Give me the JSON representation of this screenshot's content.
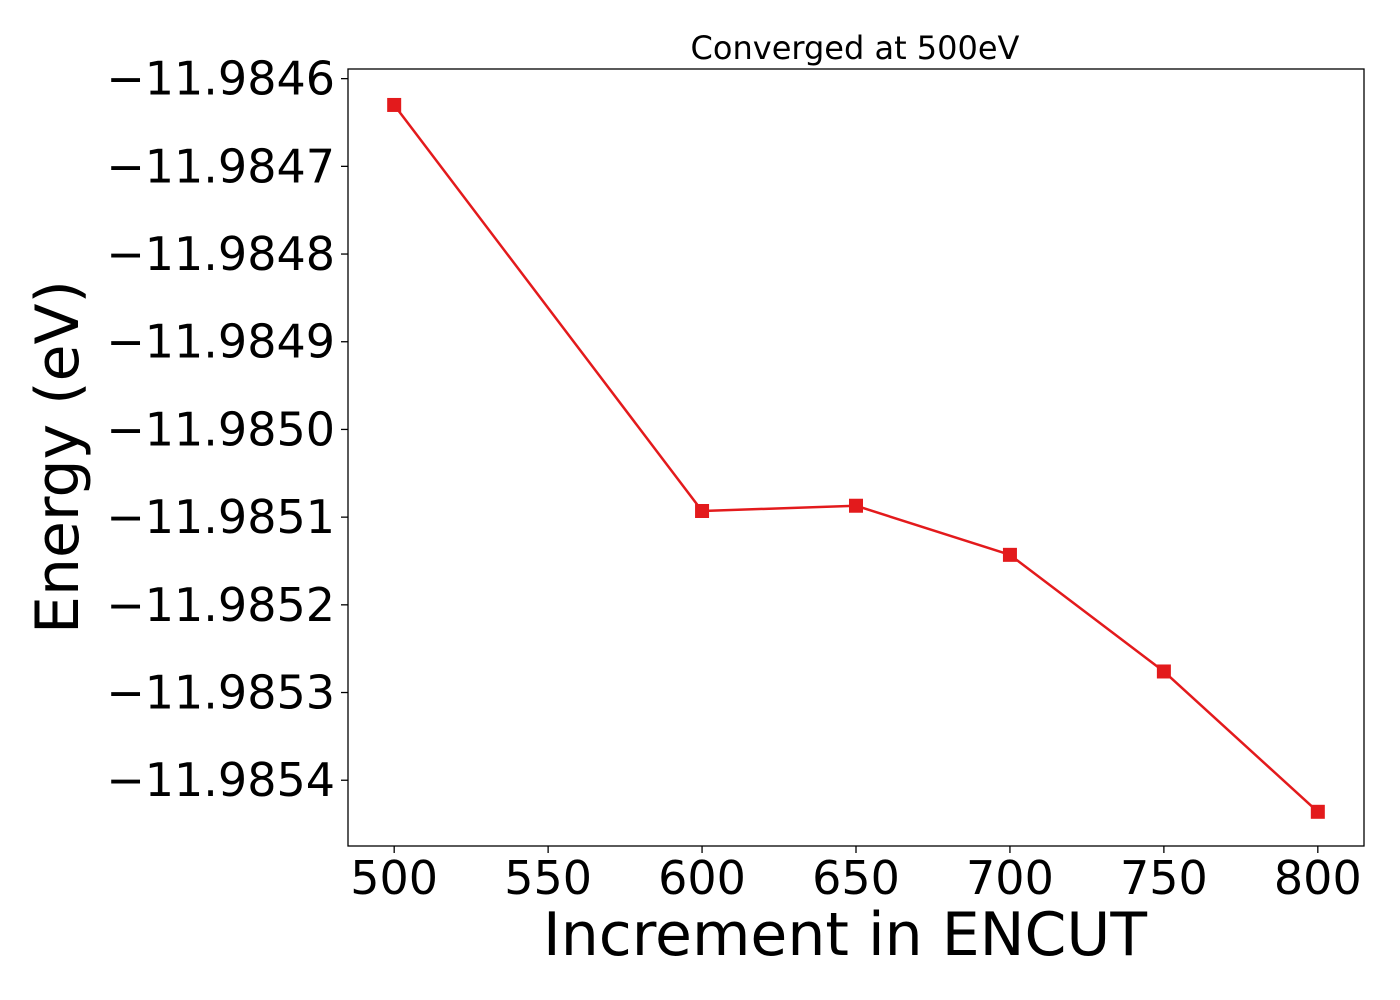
{
  "chart_data": {
    "type": "line",
    "title": "Converged at 500eV",
    "xlabel": "Increment in ENCUT",
    "ylabel": "Energy (eV)",
    "x": [
      500,
      600,
      650,
      700,
      750,
      800
    ],
    "series": [
      {
        "values": [
          -11.98463,
          -11.985093,
          -11.985087,
          -11.985143,
          -11.985276,
          -11.985436
        ],
        "color": "#e31a1c",
        "marker": "square"
      }
    ],
    "xticks": [
      500,
      550,
      600,
      650,
      700,
      750,
      800
    ],
    "yticks": [
      -11.9846,
      -11.9847,
      -11.9848,
      -11.9849,
      -11.985,
      -11.9851,
      -11.9852,
      -11.9853,
      -11.9854
    ],
    "xtick_labels": [
      "500",
      "550",
      "600",
      "650",
      "700",
      "750",
      "800"
    ],
    "ytick_labels": [
      "−11.9846",
      "−11.9847",
      "−11.9848",
      "−11.9849",
      "−11.9850",
      "−11.9851",
      "−11.9852",
      "−11.9853",
      "−11.9854"
    ],
    "xlim": [
      485,
      815
    ],
    "ylim": [
      -11.985475,
      -11.984589
    ],
    "grid": false,
    "legend": false
  }
}
